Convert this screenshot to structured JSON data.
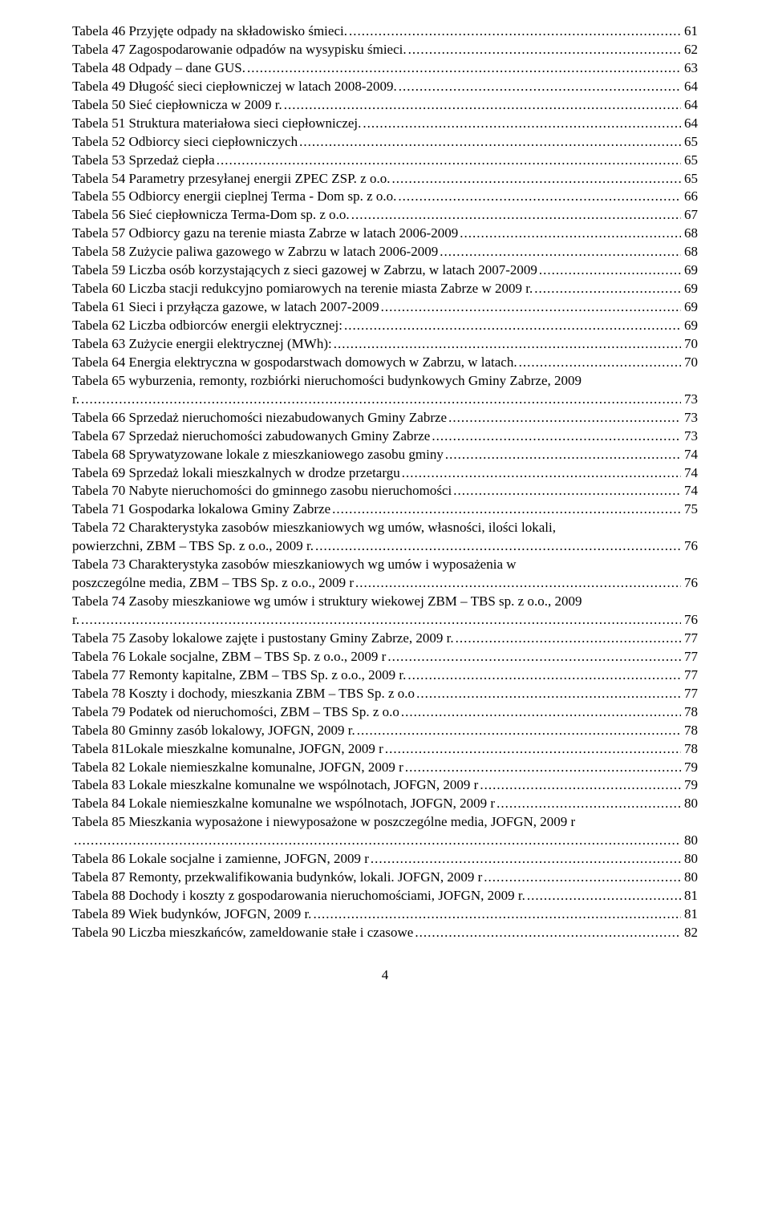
{
  "page_number": "4",
  "entries": [
    {
      "label": "Tabela 46 Przyjęte odpady na składowisko śmieci.",
      "page": "61"
    },
    {
      "label": "Tabela 47 Zagospodarowanie odpadów na wysypisku śmieci.",
      "page": "62"
    },
    {
      "label": "Tabela 48 Odpady – dane GUS.",
      "page": "63"
    },
    {
      "label": "Tabela 49 Długość sieci ciepłowniczej w latach 2008-2009.",
      "page": "64"
    },
    {
      "label": "Tabela 50 Sieć ciepłownicza w 2009 r.",
      "page": "64"
    },
    {
      "label": "Tabela 51 Struktura materiałowa sieci ciepłowniczej.",
      "page": "64"
    },
    {
      "label": "Tabela 52 Odbiorcy sieci ciepłowniczych",
      "page": "65"
    },
    {
      "label": "Tabela 53 Sprzedaż ciepła",
      "page": "65"
    },
    {
      "label": "Tabela 54 Parametry przesyłanej energii ZPEC ZSP. z o.o.",
      "page": "65"
    },
    {
      "label": "Tabela 55 Odbiorcy energii cieplnej Terma - Dom sp. z o.o.",
      "page": "66"
    },
    {
      "label": "Tabela 56 Sieć ciepłownicza Terma-Dom sp. z o.o.",
      "page": "67"
    },
    {
      "label": "Tabela 57 Odbiorcy gazu na terenie miasta Zabrze w latach 2006-2009",
      "page": "68"
    },
    {
      "label": "Tabela 58 Zużycie paliwa gazowego w Zabrzu w latach 2006-2009",
      "page": "68"
    },
    {
      "label": "Tabela 59 Liczba osób korzystających z sieci gazowej w Zabrzu, w latach 2007-2009",
      "page": "69"
    },
    {
      "label": "Tabela 60 Liczba stacji redukcyjno pomiarowych na terenie miasta Zabrze w 2009 r.",
      "page": "69"
    },
    {
      "label": "Tabela 61 Sieci i przyłącza gazowe, w latach 2007-2009",
      "page": "69"
    },
    {
      "label": "Tabela 62 Liczba odbiorców energii elektrycznej:",
      "page": "69"
    },
    {
      "label": "Tabela 63 Zużycie energii elektrycznej (MWh):",
      "page": "70"
    },
    {
      "label": "Tabela 64 Energia elektryczna w gospodarstwach domowych w Zabrzu, w latach.",
      "page": "70"
    },
    {
      "label_l1": "Tabela 65 wyburzenia, remonty, rozbiórki nieruchomości budynkowych Gminy Zabrze, 2009",
      "label_l2": "r.",
      "page": "73",
      "twoLine": true
    },
    {
      "label": "Tabela 66 Sprzedaż nieruchomości niezabudowanych Gminy Zabrze",
      "page": "73"
    },
    {
      "label": "Tabela 67 Sprzedaż nieruchomości zabudowanych Gminy Zabrze",
      "page": "73"
    },
    {
      "label": "Tabela 68 Sprywatyzowane lokale z mieszkaniowego zasobu gminy",
      "page": "74"
    },
    {
      "label": "Tabela 69 Sprzedaż lokali mieszkalnych w drodze przetargu",
      "page": "74"
    },
    {
      "label": "Tabela 70 Nabyte nieruchomości do gminnego zasobu nieruchomości",
      "page": "74"
    },
    {
      "label": "Tabela 71 Gospodarka lokalowa Gminy Zabrze",
      "page": "75"
    },
    {
      "label_l1": "Tabela 72 Charakterystyka zasobów mieszkaniowych wg umów, własności, ilości lokali,",
      "label_l2": "powierzchni, ZBM – TBS Sp. z o.o., 2009 r.",
      "page": "76",
      "twoLine": true
    },
    {
      "label_l1": "Tabela 73 Charakterystyka zasobów mieszkaniowych wg umów i wyposażenia w",
      "label_l2": "poszczególne media, ZBM – TBS Sp. z o.o., 2009 r",
      "page": "76",
      "twoLine": true
    },
    {
      "label_l1": "Tabela 74 Zasoby mieszkaniowe wg umów i struktury wiekowej ZBM – TBS sp. z o.o., 2009",
      "label_l2": "r.",
      "page": "76",
      "twoLine": true
    },
    {
      "label": "Tabela 75 Zasoby lokalowe zajęte i pustostany Gminy Zabrze, 2009 r.",
      "page": "77"
    },
    {
      "label": "Tabela 76 Lokale socjalne, ZBM – TBS Sp. z o.o., 2009 r",
      "page": "77"
    },
    {
      "label": "Tabela 77 Remonty kapitalne, ZBM – TBS Sp. z o.o., 2009 r.",
      "page": "77"
    },
    {
      "label": "Tabela 78 Koszty i dochody, mieszkania ZBM – TBS Sp. z o.o",
      "page": "77"
    },
    {
      "label": "Tabela 79 Podatek od nieruchomości, ZBM – TBS Sp. z o.o",
      "page": "78"
    },
    {
      "label": "Tabela 80 Gminny zasób lokalowy, JOFGN, 2009 r.",
      "page": "78"
    },
    {
      "label": "Tabela 81Lokale mieszkalne komunalne, JOFGN, 2009 r",
      "page": "78"
    },
    {
      "label": "Tabela 82 Lokale niemieszkalne komunalne, JOFGN, 2009 r",
      "page": "79"
    },
    {
      "label": "Tabela 83 Lokale mieszkalne komunalne we wspólnotach, JOFGN, 2009 r",
      "page": "79"
    },
    {
      "label": "Tabela 84 Lokale niemieszkalne komunalne we wspólnotach, JOFGN, 2009 r",
      "page": "80"
    },
    {
      "label_l1": "Tabela 85 Mieszkania wyposażone i niewyposażone w poszczególne media, JOFGN, 2009 r",
      "label_l2": "",
      "page": "80",
      "twoLine": true
    },
    {
      "label": "Tabela 86 Lokale socjalne i zamienne, JOFGN, 2009 r",
      "page": "80"
    },
    {
      "label": "Tabela 87 Remonty, przekwalifikowania budynków, lokali. JOFGN, 2009 r",
      "page": "80"
    },
    {
      "label": "Tabela 88 Dochody i koszty z gospodarowania nieruchomościami, JOFGN, 2009 r.",
      "page": "81"
    },
    {
      "label": "Tabela 89 Wiek budynków, JOFGN, 2009 r.",
      "page": "81"
    },
    {
      "label": "Tabela 90 Liczba mieszkańców, zameldowanie stałe i czasowe",
      "page": "82"
    }
  ]
}
